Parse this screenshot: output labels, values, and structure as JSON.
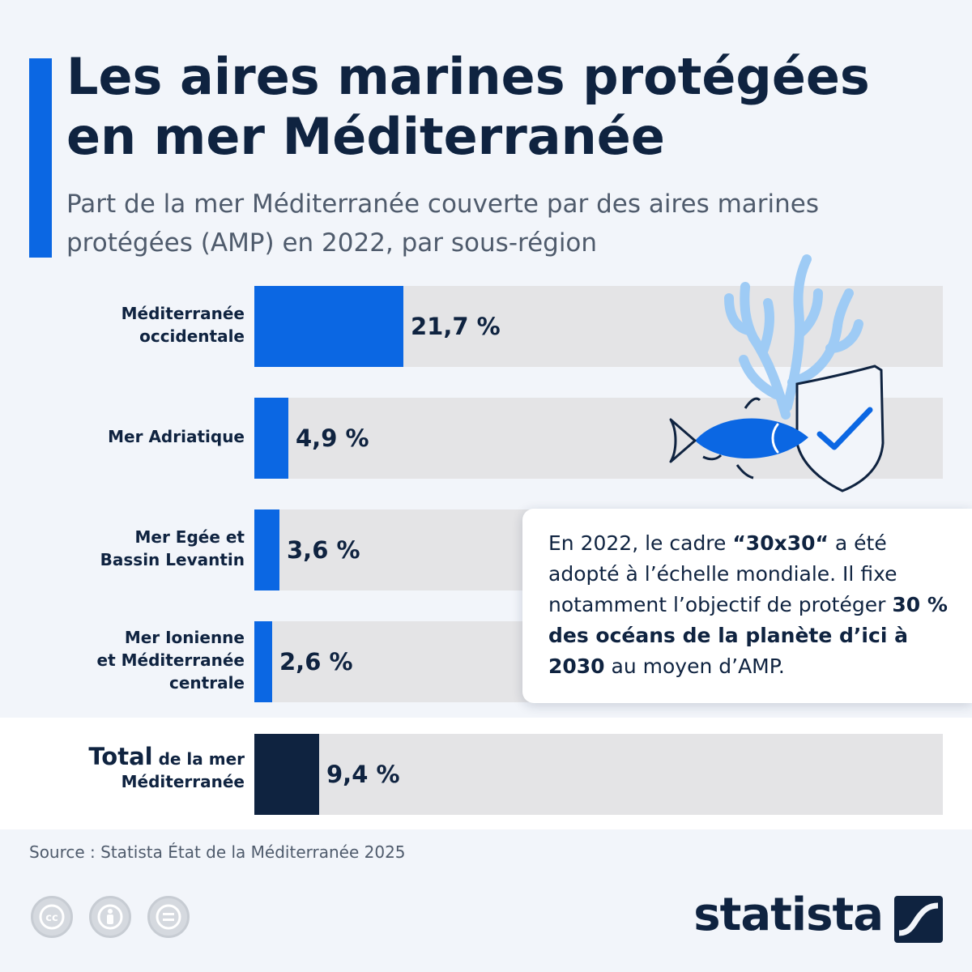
{
  "header": {
    "title_lines": [
      "Les aires marines protégées",
      "en mer Méditerranée"
    ],
    "subtitle_lines": [
      "Part de la mer Méditerranée couverte par des aires marines",
      "protégées (AMP) en 2022, par sous-région"
    ]
  },
  "chart_data": {
    "type": "bar",
    "orientation": "horizontal",
    "title": "Les aires marines protégées en mer Méditerranée",
    "subtitle": "Part de la mer Méditerranée couverte par des aires marines protégées (AMP) en 2022, par sous-région",
    "value_unit": "%",
    "xlim": [
      0,
      100
    ],
    "grid": false,
    "categories": [
      {
        "lines": [
          "Méditerranée",
          "occidentale"
        ],
        "value": 21.7,
        "value_label": "21,7 %",
        "is_total": false
      },
      {
        "lines": [
          "Mer Adriatique"
        ],
        "value": 4.9,
        "value_label": "4,9 %",
        "is_total": false
      },
      {
        "lines": [
          "Mer Egée et",
          "Bassin Levantin"
        ],
        "value": 3.6,
        "value_label": "3,6 %",
        "is_total": false
      },
      {
        "lines": [
          "Mer Ionienne",
          "et Méditerranée",
          "centrale"
        ],
        "value": 2.6,
        "value_label": "2,6 %",
        "is_total": false
      },
      {
        "lines_total": {
          "bold": "Total",
          "rest": " de la mer",
          "second": "Méditerranée"
        },
        "value": 9.4,
        "value_label": "9,4 %",
        "is_total": true
      }
    ],
    "colors": {
      "bar": "#0b67e3",
      "total_bar": "#0f2340",
      "track": "#e4e4e6"
    }
  },
  "info_box": {
    "parts": [
      {
        "text": "En 2022, le cadre ",
        "bold": false
      },
      {
        "text": "“30x30“",
        "bold": true
      },
      {
        "text": " a été adopté à l’échelle mondiale. Il fixe notamment l’objectif de protéger ",
        "bold": false
      },
      {
        "text": "30 % des océans de la planète d’ici à 2030",
        "bold": true
      },
      {
        "text": " au moyen d’AMP.",
        "bold": false
      }
    ]
  },
  "footer": {
    "source": "Source : Statista État de la Méditerranée 2025",
    "license_icons": [
      "cc-icon",
      "attribution-icon",
      "no-derivatives-icon"
    ],
    "brand": "statista"
  },
  "colors": {
    "accent": "#0b67e3",
    "navy": "#0f2340",
    "background": "#f2f5fa",
    "coral": "#9ecbf5"
  }
}
